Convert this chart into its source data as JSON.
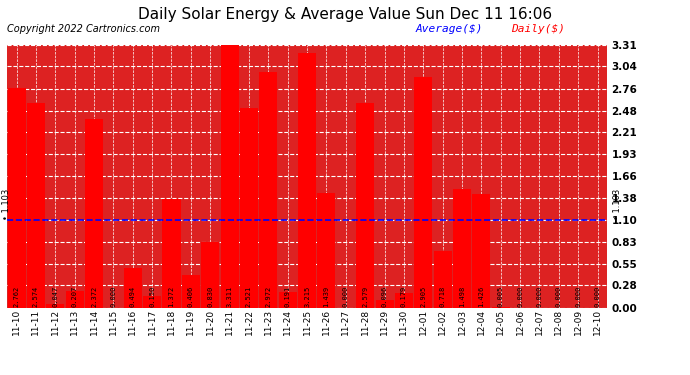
{
  "title": "Daily Solar Energy & Average Value Sun Dec 11 16:06",
  "copyright": "Copyright 2022 Cartronics.com",
  "legend_average": "Average($)",
  "legend_daily": "Daily($)",
  "average_line": 1.103,
  "categories": [
    "11-10",
    "11-11",
    "11-12",
    "11-13",
    "11-14",
    "11-15",
    "11-16",
    "11-17",
    "11-18",
    "11-19",
    "11-20",
    "11-21",
    "11-22",
    "11-23",
    "11-24",
    "11-25",
    "11-26",
    "11-27",
    "11-28",
    "11-29",
    "11-30",
    "12-01",
    "12-02",
    "12-03",
    "12-04",
    "12-05",
    "12-06",
    "12-07",
    "12-08",
    "12-09",
    "12-10"
  ],
  "values": [
    2.762,
    2.574,
    0.047,
    0.207,
    2.372,
    0.0,
    0.494,
    0.15,
    1.372,
    0.406,
    0.83,
    3.311,
    2.521,
    2.972,
    0.191,
    3.215,
    1.439,
    0.0,
    2.579,
    0.096,
    0.179,
    2.905,
    0.718,
    1.498,
    1.426,
    0.005,
    0.0,
    0.0,
    0.0,
    0.0,
    0.0
  ],
  "bar_color": "#ff0000",
  "average_line_color": "#0000ff",
  "average_label_color": "#0000ff",
  "daily_label_color": "#ff0000",
  "background_color": "#ffffff",
  "grid_color": "#bbbbbb",
  "title_color": "#000000",
  "copyright_color": "#000000",
  "ylim_max": 3.31,
  "yticks": [
    0.0,
    0.28,
    0.55,
    0.83,
    1.1,
    1.38,
    1.66,
    1.93,
    2.21,
    2.48,
    2.76,
    3.04,
    3.31
  ],
  "value_fontsize": 5.0,
  "xlabel_fontsize": 6.5,
  "ylabel_fontsize": 7.5,
  "title_fontsize": 11,
  "copyright_fontsize": 7,
  "avg_annotation_fontsize": 6,
  "avg_annotation_text": "• 1.103"
}
